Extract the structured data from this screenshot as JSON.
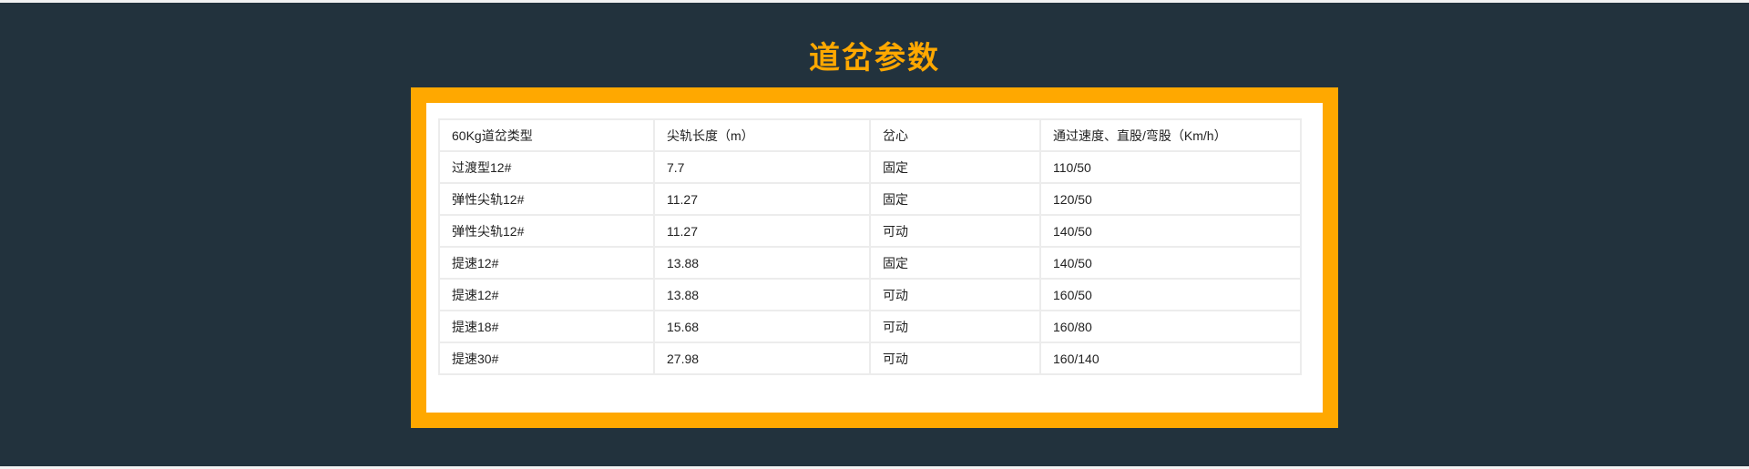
{
  "title": "道岔参数",
  "colors": {
    "accent": "#ffa800",
    "background": "#22323d"
  },
  "table": {
    "headers": [
      "60Kg道岔类型",
      "尖轨长度（m）",
      "岔心",
      "通过速度、直股/弯股（Km/h）"
    ],
    "rows": [
      [
        "过渡型12#",
        "7.7",
        "固定",
        "110/50"
      ],
      [
        "弹性尖轨12#",
        "11.27",
        "固定",
        "120/50"
      ],
      [
        "弹性尖轨12#",
        "11.27",
        "可动",
        "140/50"
      ],
      [
        "提速12#",
        "13.88",
        "固定",
        "140/50"
      ],
      [
        "提速12#",
        "13.88",
        "可动",
        "160/50"
      ],
      [
        "提速18#",
        "15.68",
        "可动",
        "160/80"
      ],
      [
        "提速30#",
        "27.98",
        "可动",
        "160/140"
      ]
    ]
  }
}
